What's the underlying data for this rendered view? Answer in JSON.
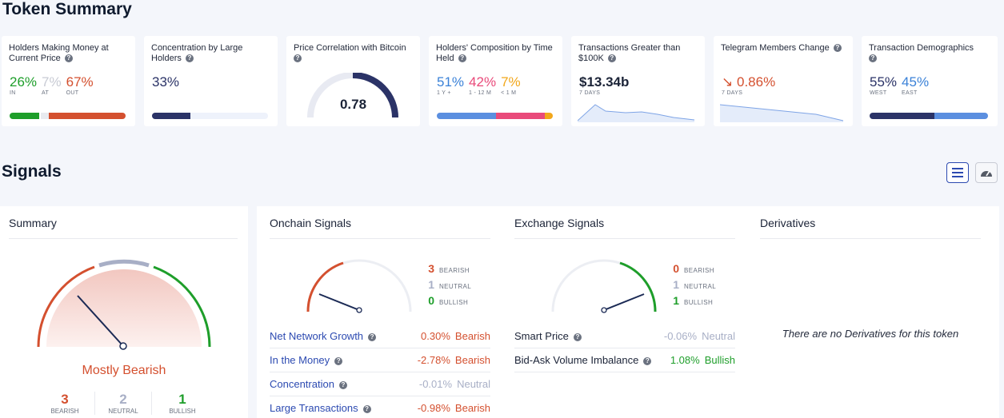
{
  "token_summary": {
    "title": "Token Summary",
    "cards": {
      "holders_money": {
        "title": "Holders Making Money at Current Price",
        "in_value": "26%",
        "in_label": "IN",
        "at_value": "7%",
        "at_label": "AT",
        "out_value": "67%",
        "out_label": "OUT",
        "bar_fractions": [
          0.26,
          0.07,
          0.67
        ]
      },
      "concentration": {
        "title": "Concentration by Large Holders",
        "value": "33%",
        "bar_fraction": 0.33
      },
      "price_correlation": {
        "title": "Price Correlation with Bitcoin",
        "value": "0.78",
        "gauge_fraction": 0.78
      },
      "holders_composition": {
        "title": "Holders' Composition by Time Held",
        "v1": "51%",
        "l1": "1 Y +",
        "v2": "42%",
        "l2": "1 - 12 M",
        "v3": "7%",
        "l3": "< 1 M",
        "bar_fractions": [
          0.51,
          0.42,
          0.07
        ]
      },
      "transactions": {
        "title": "Transactions Greater than $100K",
        "value": "$13.34b",
        "sub": "7 DAYS"
      },
      "telegram": {
        "title": "Telegram Members Change",
        "value": "0.86%",
        "sub": "7 DAYS",
        "arrow_icon": "arrow-down-right-icon"
      },
      "demographics": {
        "title": "Transaction Demographics",
        "v1": "55%",
        "l1": "WEST",
        "v2": "45%",
        "l2": "EAST",
        "bar_fractions": [
          0.55,
          0.45
        ]
      }
    }
  },
  "signals": {
    "title": "Signals",
    "view_buttons": [
      "list-view-icon",
      "gauge-view-icon"
    ],
    "summary": {
      "title": "Summary",
      "verdict": "Mostly Bearish",
      "bearish": "3",
      "bearish_label": "BEARISH",
      "neutral": "2",
      "neutral_label": "NEUTRAL",
      "bullish": "1",
      "bullish_label": "BULLISH"
    },
    "onchain": {
      "title": "Onchain Signals",
      "bearish": "3",
      "neutral": "1",
      "bullish": "0",
      "bearish_label": "BEARISH",
      "neutral_label": "NEUTRAL",
      "bullish_label": "BULLISH",
      "rows": [
        {
          "name": "Net Network Growth",
          "value": "0.30%",
          "verdict": "Bearish"
        },
        {
          "name": "In the Money",
          "value": "-2.78%",
          "verdict": "Bearish"
        },
        {
          "name": "Concentration",
          "value": "-0.01%",
          "verdict": "Neutral"
        },
        {
          "name": "Large Transactions",
          "value": "-0.98%",
          "verdict": "Bearish"
        }
      ]
    },
    "exchange": {
      "title": "Exchange Signals",
      "bearish": "0",
      "neutral": "1",
      "bullish": "1",
      "bearish_label": "BEARISH",
      "neutral_label": "NEUTRAL",
      "bullish_label": "BULLISH",
      "rows": [
        {
          "name": "Smart Price",
          "value": "-0.06%",
          "verdict": "Neutral"
        },
        {
          "name": "Bid-Ask Volume Imbalance",
          "value": "1.08%",
          "verdict": "Bullish"
        }
      ]
    },
    "derivatives": {
      "title": "Derivatives",
      "empty_text": "There are no Derivatives for this token"
    }
  },
  "colors": {
    "green": "#1e9e2a",
    "red": "#d4502f",
    "grey": "#c8cbd4",
    "navy": "#2b3367",
    "blue": "#3b82d8",
    "pink": "#e94a7a",
    "orange": "#f2a71b",
    "link": "#2c4ab1"
  }
}
